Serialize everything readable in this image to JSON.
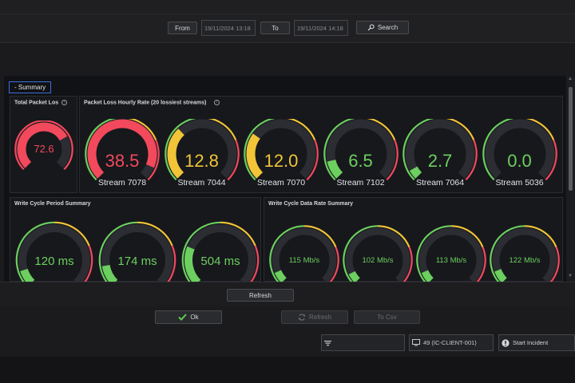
{
  "filter": {
    "from_label": "From",
    "from_value": "19/11/2024 13:18",
    "to_label": "To",
    "to_value": "19/11/2024 14:18",
    "search_label": "Search"
  },
  "summary_label": "- Summary",
  "colors": {
    "red": "#f2495c",
    "yellow": "#f2c437",
    "green": "#6ccf5f",
    "track": "#2b2d33"
  },
  "panels": {
    "total_packet_loss": {
      "title": "Total Packet Los",
      "gauge": {
        "value": "72.6",
        "level": 0.726
      }
    },
    "hourly_rate": {
      "title": "Packet Loss Hourly Rate (20 lossiest streams)",
      "gauges": [
        {
          "value": "38.5",
          "label": "Stream 7078",
          "level": 0.92,
          "color": "red"
        },
        {
          "value": "12.8",
          "label": "Stream 7044",
          "level": 0.34,
          "color": "yellow"
        },
        {
          "value": "12.0",
          "label": "Stream 7070",
          "level": 0.3,
          "color": "yellow"
        },
        {
          "value": "6.5",
          "label": "Stream 7102",
          "level": 0.12,
          "color": "green"
        },
        {
          "value": "2.7",
          "label": "Stream 7064",
          "level": 0.06,
          "color": "green"
        },
        {
          "value": "0.0",
          "label": "Stream 5036",
          "level": 0.0,
          "color": "green"
        }
      ]
    },
    "write_cycle_period": {
      "title": "Write Cycle Period Summary",
      "gauges": [
        {
          "value": "120 ms",
          "level": 0.1
        },
        {
          "value": "174 ms",
          "level": 0.13
        },
        {
          "value": "504 ms",
          "level": 0.25
        }
      ]
    },
    "write_cycle_rate": {
      "title": "Write Cycle Data Rate Summary",
      "gauges": [
        {
          "value": "115 Mb/s",
          "level": 0.08
        },
        {
          "value": "102 Mb/s",
          "level": 0.07
        },
        {
          "value": "113 Mb/s",
          "level": 0.08
        },
        {
          "value": "122 Mb/s",
          "level": 0.09
        }
      ]
    }
  },
  "buttons": {
    "refresh_panel": "Refresh",
    "ok": "Ok",
    "refresh": "Refresh",
    "to_csv": "To Csv"
  },
  "status": {
    "client": "49 (IC-CLIENT-001)",
    "start_incident": "Start Incident"
  }
}
